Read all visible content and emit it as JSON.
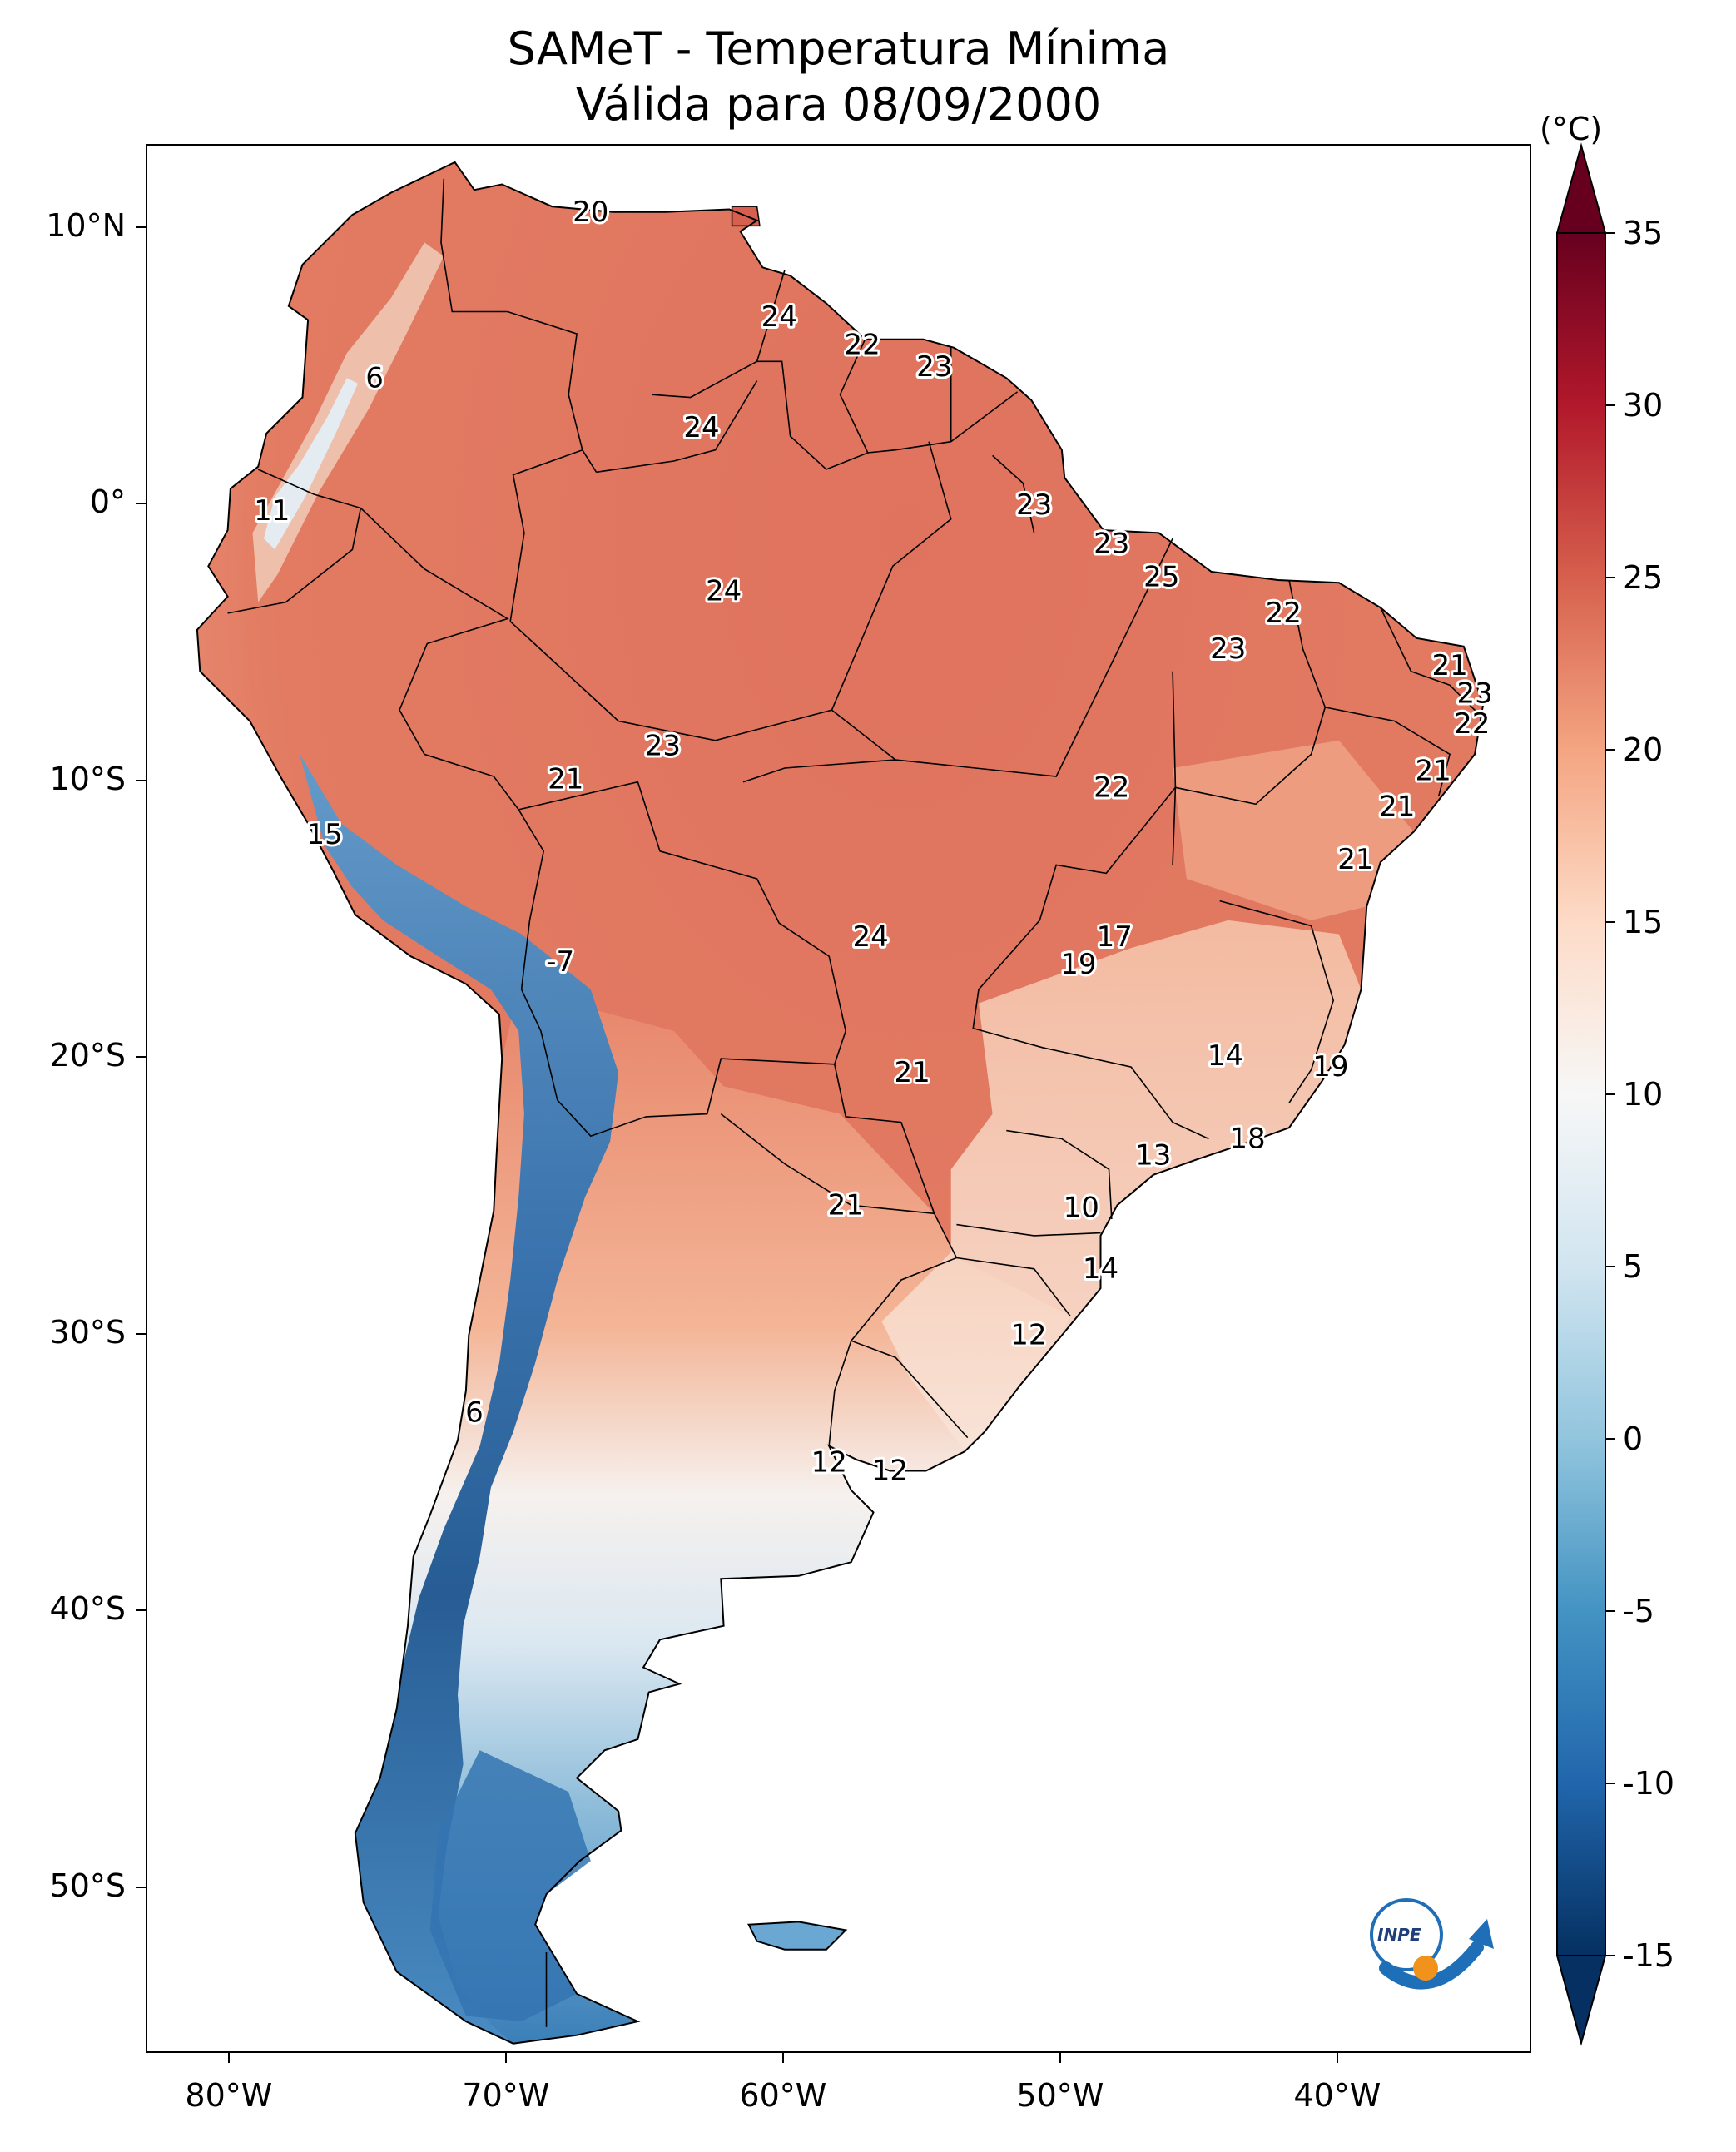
{
  "title": {
    "line1": "SAMeT - Temperatura Mínima",
    "line2": "Válida para 08/09/2000"
  },
  "axes": {
    "lat_labels": [
      {
        "deg": 10,
        "text": "10°N"
      },
      {
        "deg": 0,
        "text": "0°"
      },
      {
        "deg": -10,
        "text": "10°S"
      },
      {
        "deg": -20,
        "text": "20°S"
      },
      {
        "deg": -30,
        "text": "30°S"
      },
      {
        "deg": -40,
        "text": "40°S"
      },
      {
        "deg": -50,
        "text": "50°S"
      }
    ],
    "lon_labels": [
      {
        "deg": -80,
        "text": "80°W"
      },
      {
        "deg": -70,
        "text": "70°W"
      },
      {
        "deg": -60,
        "text": "60°W"
      },
      {
        "deg": -50,
        "text": "50°W"
      },
      {
        "deg": -40,
        "text": "40°W"
      }
    ],
    "lon_range": [
      -83,
      -33
    ],
    "lat_range": [
      -56,
      13
    ]
  },
  "colorbar": {
    "unit": "(°C)",
    "range": [
      -15,
      35
    ],
    "ticks": [
      "35",
      "30",
      "25",
      "20",
      "15",
      "10",
      "5",
      "0",
      "-5",
      "-10",
      "-15"
    ],
    "colormap": "RdBu_r",
    "extend": "both"
  },
  "stations": [
    {
      "value": "20",
      "lon": -67.0,
      "lat": 10.6
    },
    {
      "value": "24",
      "lon": -60.2,
      "lat": 6.8
    },
    {
      "value": "22",
      "lon": -57.2,
      "lat": 5.8
    },
    {
      "value": "23",
      "lon": -54.6,
      "lat": 5.0
    },
    {
      "value": "6",
      "lon": -74.8,
      "lat": 4.6
    },
    {
      "value": "24",
      "lon": -63.0,
      "lat": 2.8
    },
    {
      "value": "11",
      "lon": -78.5,
      "lat": -0.2
    },
    {
      "value": "23",
      "lon": -51.0,
      "lat": 0.0
    },
    {
      "value": "23",
      "lon": -48.2,
      "lat": -1.4
    },
    {
      "value": "24",
      "lon": -62.2,
      "lat": -3.1
    },
    {
      "value": "25",
      "lon": -46.4,
      "lat": -2.6
    },
    {
      "value": "22",
      "lon": -42.0,
      "lat": -3.9
    },
    {
      "value": "23",
      "lon": -44.0,
      "lat": -5.2
    },
    {
      "value": "21",
      "lon": -36.0,
      "lat": -5.8
    },
    {
      "value": "23",
      "lon": -35.1,
      "lat": -6.8
    },
    {
      "value": "22",
      "lon": -35.2,
      "lat": -7.9
    },
    {
      "value": "23",
      "lon": -64.4,
      "lat": -8.7
    },
    {
      "value": "21",
      "lon": -67.9,
      "lat": -9.9
    },
    {
      "value": "22",
      "lon": -48.2,
      "lat": -10.2
    },
    {
      "value": "21",
      "lon": -36.6,
      "lat": -9.6
    },
    {
      "value": "21",
      "lon": -37.9,
      "lat": -10.9
    },
    {
      "value": "15",
      "lon": -76.6,
      "lat": -11.9
    },
    {
      "value": "21",
      "lon": -39.4,
      "lat": -12.8
    },
    {
      "value": "24",
      "lon": -56.9,
      "lat": -15.6
    },
    {
      "value": "17",
      "lon": -48.1,
      "lat": -15.6
    },
    {
      "value": "-7",
      "lon": -68.1,
      "lat": -16.5
    },
    {
      "value": "19",
      "lon": -49.4,
      "lat": -16.6
    },
    {
      "value": "14",
      "lon": -44.1,
      "lat": -19.9
    },
    {
      "value": "19",
      "lon": -40.3,
      "lat": -20.3
    },
    {
      "value": "21",
      "lon": -55.4,
      "lat": -20.5
    },
    {
      "value": "18",
      "lon": -43.3,
      "lat": -22.9
    },
    {
      "value": "13",
      "lon": -46.7,
      "lat": -23.5
    },
    {
      "value": "21",
      "lon": -57.8,
      "lat": -25.3
    },
    {
      "value": "10",
      "lon": -49.3,
      "lat": -25.4
    },
    {
      "value": "14",
      "lon": -48.6,
      "lat": -27.6
    },
    {
      "value": "12",
      "lon": -51.2,
      "lat": -30.0
    },
    {
      "value": "6",
      "lon": -71.2,
      "lat": -32.8
    },
    {
      "value": "12",
      "lon": -58.4,
      "lat": -34.6
    },
    {
      "value": "12",
      "lon": -56.2,
      "lat": -34.9
    }
  ]
}
